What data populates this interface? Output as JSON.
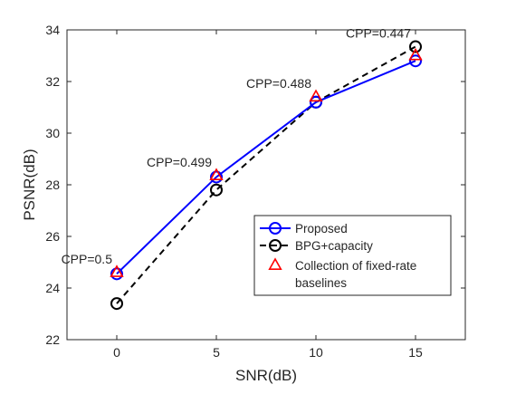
{
  "chart_data": {
    "type": "line",
    "xlabel": "SNR(dB)",
    "ylabel": "PSNR(dB)",
    "xlim": [
      -2.5,
      17.5
    ],
    "ylim": [
      22,
      34
    ],
    "xticks": [
      0,
      5,
      10,
      15
    ],
    "yticks": [
      22,
      24,
      26,
      28,
      30,
      32,
      34
    ],
    "grid": false,
    "legend_position": "lower-right",
    "series": [
      {
        "name": "Proposed",
        "x": [
          0,
          5,
          10,
          15
        ],
        "values": [
          24.55,
          28.3,
          31.2,
          32.8
        ],
        "color": "#0000ff",
        "line": "solid",
        "marker": "circle"
      },
      {
        "name": "BPG+capacity",
        "x": [
          0,
          5,
          10,
          15
        ],
        "values": [
          23.4,
          27.8,
          31.2,
          33.35
        ],
        "color": "#000000",
        "line": "dashed",
        "marker": "circle"
      },
      {
        "name": "Collection of fixed-rate baselines",
        "legend_lines": [
          "Collection of fixed-rate",
          "baselines"
        ],
        "x": [
          0,
          5,
          10,
          15
        ],
        "values": [
          24.6,
          28.35,
          31.4,
          33.0
        ],
        "color": "#ff0000",
        "line": "none",
        "marker": "triangle"
      }
    ],
    "annotations": [
      {
        "text": "CPP=0.5",
        "x": 0,
        "y": 24.6
      },
      {
        "text": "CPP=0.499",
        "x": 5,
        "y": 28.35
      },
      {
        "text": "CPP=0.488",
        "x": 10,
        "y": 31.4
      },
      {
        "text": "CPP=0.447",
        "x": 15,
        "y": 33.35
      }
    ]
  }
}
